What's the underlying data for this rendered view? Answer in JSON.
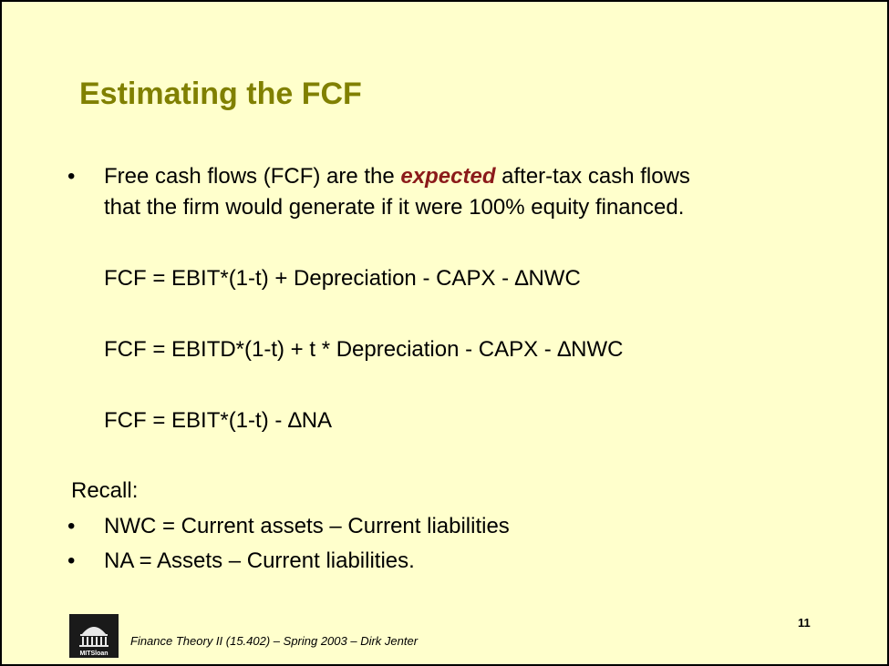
{
  "slide": {
    "title": "Estimating the FCF",
    "bullet_symbol": "•",
    "intro": {
      "prefix": "Free cash flows (FCF) are the ",
      "emphasis": "expected",
      "suffix": " after-tax cash flows",
      "line2": "that the firm would generate if it were 100% equity financed."
    },
    "formulas": [
      "FCF = EBIT*(1-t) + Depreciation - CAPX - ∆NWC",
      "FCF = EBITD*(1-t) + t * Depreciation - CAPX - ∆NWC",
      "FCF = EBIT*(1-t) - ∆NA"
    ],
    "recall_label": "Recall:",
    "recall_items": [
      "NWC = Current assets – Current liabilities",
      "NA = Assets – Current liabilities."
    ],
    "page_number": "11",
    "footer": "Finance Theory II (15.402) – Spring 2003 – Dirk Jenter",
    "logo_text": "MITSloan"
  }
}
